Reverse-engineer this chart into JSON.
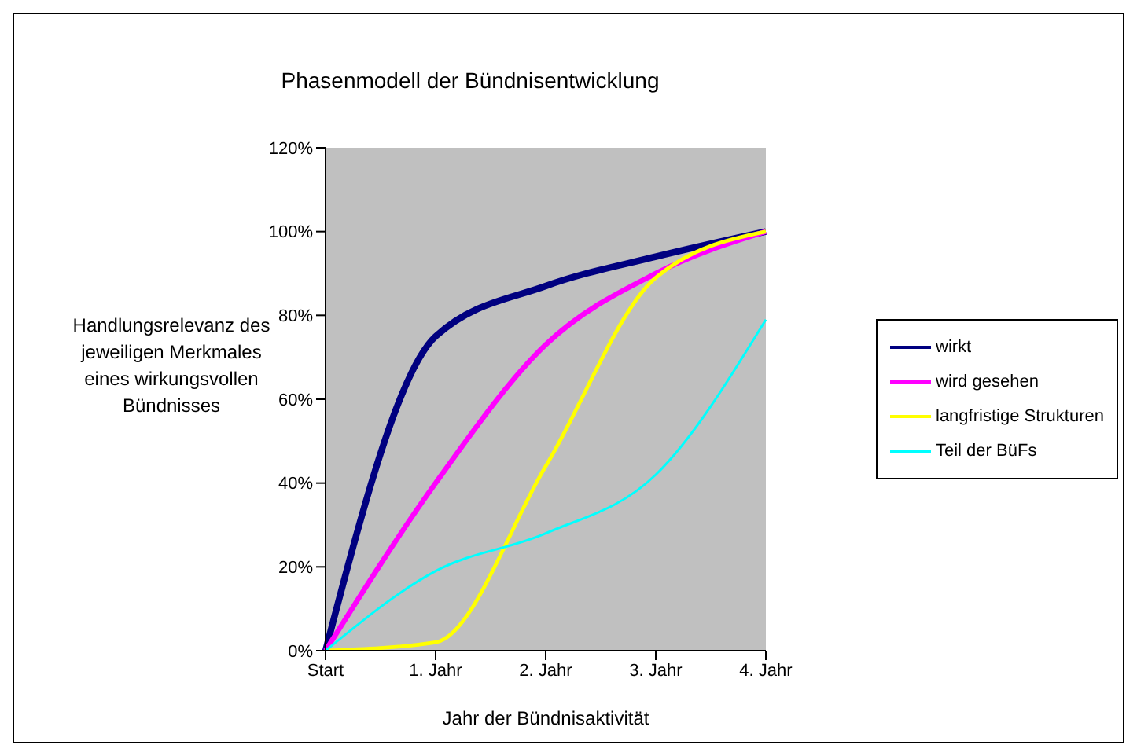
{
  "chart_data": {
    "type": "line",
    "title": "Phasenmodell der Bündnisentwicklung",
    "xlabel": "Jahr der Bündnisaktivität",
    "ylabel": "Handlungsrelevanz des jeweiligen Merkmales eines wirkungsvollen Bündnisses",
    "categories": [
      "Start",
      "1. Jahr",
      "2. Jahr",
      "3. Jahr",
      "4. Jahr"
    ],
    "series": [
      {
        "name": "wirkt",
        "color": "#000080",
        "values": [
          0,
          75,
          87,
          94,
          100
        ]
      },
      {
        "name": "wird gesehen",
        "color": "#ff00ff",
        "values": [
          0,
          40,
          73,
          90,
          100
        ]
      },
      {
        "name": "langfristige Strukturen",
        "color": "#ffff00",
        "values": [
          0,
          2,
          44,
          89,
          100
        ]
      },
      {
        "name": "Teil der BüFs",
        "color": "#00ffff",
        "values": [
          0,
          19,
          28,
          42,
          79
        ]
      }
    ],
    "ylim": [
      0,
      120
    ],
    "yticks": [
      {
        "value": 0,
        "label": "0%"
      },
      {
        "value": 20,
        "label": "20%"
      },
      {
        "value": 40,
        "label": "40%"
      },
      {
        "value": 60,
        "label": "60%"
      },
      {
        "value": 80,
        "label": "80%"
      },
      {
        "value": 100,
        "label": "100%"
      },
      {
        "value": 120,
        "label": "120%"
      }
    ],
    "grid": false,
    "legend": "right",
    "marker": "none",
    "line_style": "solid"
  }
}
